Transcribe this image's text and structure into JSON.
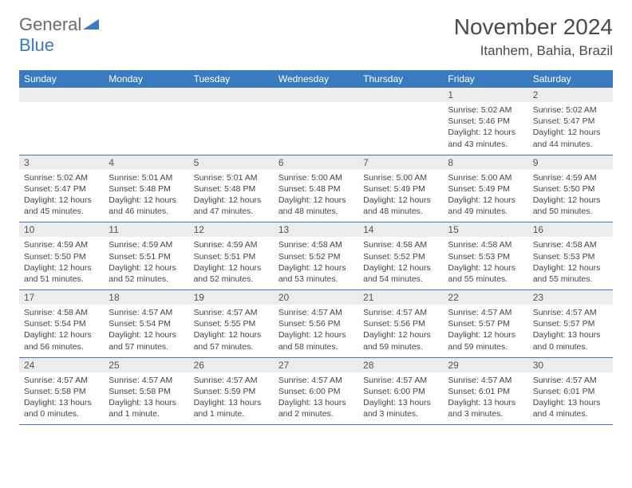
{
  "logo": {
    "word1": "General",
    "word2": "Blue"
  },
  "title": "November 2024",
  "location": "Itanhem, Bahia, Brazil",
  "colors": {
    "header_bg": "#3a7bbf",
    "header_text": "#ffffff",
    "daynum_bg": "#ececec",
    "border": "#3a7bbf",
    "logo_gray": "#6b6b6b",
    "logo_blue": "#3a7bbf",
    "text": "#444444",
    "background": "#ffffff"
  },
  "typography": {
    "title_fontsize": 28,
    "location_fontsize": 17,
    "header_fontsize": 12,
    "daynum_fontsize": 12,
    "body_fontsize": 10.5
  },
  "dayNames": [
    "Sunday",
    "Monday",
    "Tuesday",
    "Wednesday",
    "Thursday",
    "Friday",
    "Saturday"
  ],
  "weeks": [
    [
      null,
      null,
      null,
      null,
      null,
      {
        "n": "1",
        "sr": "Sunrise: 5:02 AM",
        "ss": "Sunset: 5:46 PM",
        "d1": "Daylight: 12 hours",
        "d2": "and 43 minutes."
      },
      {
        "n": "2",
        "sr": "Sunrise: 5:02 AM",
        "ss": "Sunset: 5:47 PM",
        "d1": "Daylight: 12 hours",
        "d2": "and 44 minutes."
      }
    ],
    [
      {
        "n": "3",
        "sr": "Sunrise: 5:02 AM",
        "ss": "Sunset: 5:47 PM",
        "d1": "Daylight: 12 hours",
        "d2": "and 45 minutes."
      },
      {
        "n": "4",
        "sr": "Sunrise: 5:01 AM",
        "ss": "Sunset: 5:48 PM",
        "d1": "Daylight: 12 hours",
        "d2": "and 46 minutes."
      },
      {
        "n": "5",
        "sr": "Sunrise: 5:01 AM",
        "ss": "Sunset: 5:48 PM",
        "d1": "Daylight: 12 hours",
        "d2": "and 47 minutes."
      },
      {
        "n": "6",
        "sr": "Sunrise: 5:00 AM",
        "ss": "Sunset: 5:48 PM",
        "d1": "Daylight: 12 hours",
        "d2": "and 48 minutes."
      },
      {
        "n": "7",
        "sr": "Sunrise: 5:00 AM",
        "ss": "Sunset: 5:49 PM",
        "d1": "Daylight: 12 hours",
        "d2": "and 48 minutes."
      },
      {
        "n": "8",
        "sr": "Sunrise: 5:00 AM",
        "ss": "Sunset: 5:49 PM",
        "d1": "Daylight: 12 hours",
        "d2": "and 49 minutes."
      },
      {
        "n": "9",
        "sr": "Sunrise: 4:59 AM",
        "ss": "Sunset: 5:50 PM",
        "d1": "Daylight: 12 hours",
        "d2": "and 50 minutes."
      }
    ],
    [
      {
        "n": "10",
        "sr": "Sunrise: 4:59 AM",
        "ss": "Sunset: 5:50 PM",
        "d1": "Daylight: 12 hours",
        "d2": "and 51 minutes."
      },
      {
        "n": "11",
        "sr": "Sunrise: 4:59 AM",
        "ss": "Sunset: 5:51 PM",
        "d1": "Daylight: 12 hours",
        "d2": "and 52 minutes."
      },
      {
        "n": "12",
        "sr": "Sunrise: 4:59 AM",
        "ss": "Sunset: 5:51 PM",
        "d1": "Daylight: 12 hours",
        "d2": "and 52 minutes."
      },
      {
        "n": "13",
        "sr": "Sunrise: 4:58 AM",
        "ss": "Sunset: 5:52 PM",
        "d1": "Daylight: 12 hours",
        "d2": "and 53 minutes."
      },
      {
        "n": "14",
        "sr": "Sunrise: 4:58 AM",
        "ss": "Sunset: 5:52 PM",
        "d1": "Daylight: 12 hours",
        "d2": "and 54 minutes."
      },
      {
        "n": "15",
        "sr": "Sunrise: 4:58 AM",
        "ss": "Sunset: 5:53 PM",
        "d1": "Daylight: 12 hours",
        "d2": "and 55 minutes."
      },
      {
        "n": "16",
        "sr": "Sunrise: 4:58 AM",
        "ss": "Sunset: 5:53 PM",
        "d1": "Daylight: 12 hours",
        "d2": "and 55 minutes."
      }
    ],
    [
      {
        "n": "17",
        "sr": "Sunrise: 4:58 AM",
        "ss": "Sunset: 5:54 PM",
        "d1": "Daylight: 12 hours",
        "d2": "and 56 minutes."
      },
      {
        "n": "18",
        "sr": "Sunrise: 4:57 AM",
        "ss": "Sunset: 5:54 PM",
        "d1": "Daylight: 12 hours",
        "d2": "and 57 minutes."
      },
      {
        "n": "19",
        "sr": "Sunrise: 4:57 AM",
        "ss": "Sunset: 5:55 PM",
        "d1": "Daylight: 12 hours",
        "d2": "and 57 minutes."
      },
      {
        "n": "20",
        "sr": "Sunrise: 4:57 AM",
        "ss": "Sunset: 5:56 PM",
        "d1": "Daylight: 12 hours",
        "d2": "and 58 minutes."
      },
      {
        "n": "21",
        "sr": "Sunrise: 4:57 AM",
        "ss": "Sunset: 5:56 PM",
        "d1": "Daylight: 12 hours",
        "d2": "and 59 minutes."
      },
      {
        "n": "22",
        "sr": "Sunrise: 4:57 AM",
        "ss": "Sunset: 5:57 PM",
        "d1": "Daylight: 12 hours",
        "d2": "and 59 minutes."
      },
      {
        "n": "23",
        "sr": "Sunrise: 4:57 AM",
        "ss": "Sunset: 5:57 PM",
        "d1": "Daylight: 13 hours",
        "d2": "and 0 minutes."
      }
    ],
    [
      {
        "n": "24",
        "sr": "Sunrise: 4:57 AM",
        "ss": "Sunset: 5:58 PM",
        "d1": "Daylight: 13 hours",
        "d2": "and 0 minutes."
      },
      {
        "n": "25",
        "sr": "Sunrise: 4:57 AM",
        "ss": "Sunset: 5:58 PM",
        "d1": "Daylight: 13 hours",
        "d2": "and 1 minute."
      },
      {
        "n": "26",
        "sr": "Sunrise: 4:57 AM",
        "ss": "Sunset: 5:59 PM",
        "d1": "Daylight: 13 hours",
        "d2": "and 1 minute."
      },
      {
        "n": "27",
        "sr": "Sunrise: 4:57 AM",
        "ss": "Sunset: 6:00 PM",
        "d1": "Daylight: 13 hours",
        "d2": "and 2 minutes."
      },
      {
        "n": "28",
        "sr": "Sunrise: 4:57 AM",
        "ss": "Sunset: 6:00 PM",
        "d1": "Daylight: 13 hours",
        "d2": "and 3 minutes."
      },
      {
        "n": "29",
        "sr": "Sunrise: 4:57 AM",
        "ss": "Sunset: 6:01 PM",
        "d1": "Daylight: 13 hours",
        "d2": "and 3 minutes."
      },
      {
        "n": "30",
        "sr": "Sunrise: 4:57 AM",
        "ss": "Sunset: 6:01 PM",
        "d1": "Daylight: 13 hours",
        "d2": "and 4 minutes."
      }
    ]
  ]
}
